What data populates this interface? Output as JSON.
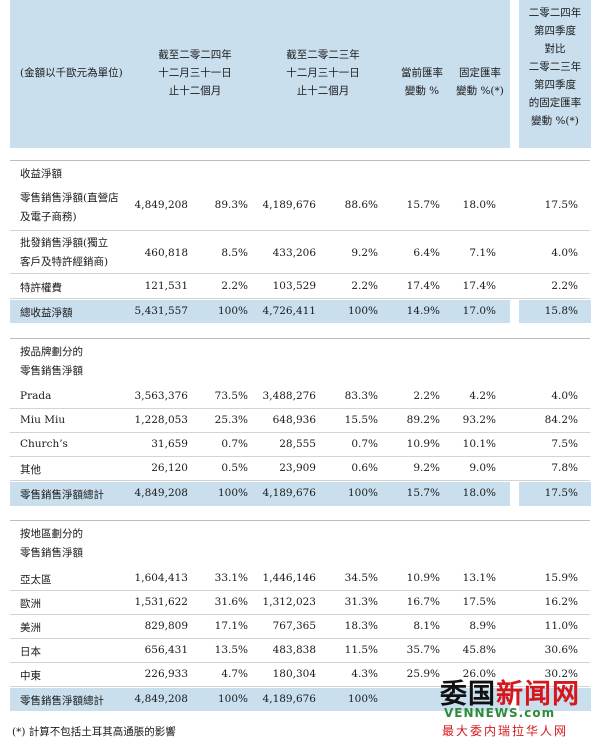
{
  "header": {
    "unit_label": "(金額以千歐元為單位)",
    "col_2024": "截至二零二四年\n十二月三十一日\n止十二個月",
    "col_2023": "截至二零二三年\n十二月三十一日\n止十二個月",
    "col_reported": "當前匯率\n變動 %",
    "col_constant": "固定匯率\n變動 %(*)",
    "col_q4": "二零二四年\n第四季度\n對比\n二零二三年\n第四季度\n的固定匯率\n變動 %(*)"
  },
  "sections": {
    "s1_title": "收益淨額",
    "s2_title": "按品牌劃分的\n零售銷售淨額",
    "s3_title": "按地區劃分的\n零售銷售淨額"
  },
  "rows": {
    "r1": {
      "label": "零售銷售淨額(直營店\n及電子商務)",
      "v1": "4,849,208",
      "p1": "89.3%",
      "v2": "4,189,676",
      "p2": "88.6%",
      "r1": "15.7%",
      "r2": "18.0%",
      "r3": "17.5%"
    },
    "r2": {
      "label": "批發銷售淨額(獨立\n客戶及特許經銷商)",
      "v1": "460,818",
      "p1": "8.5%",
      "v2": "433,206",
      "p2": "9.2%",
      "r1": "6.4%",
      "r2": "7.1%",
      "r3": "4.0%"
    },
    "r3": {
      "label": "特許權費",
      "v1": "121,531",
      "p1": "2.2%",
      "v2": "103,529",
      "p2": "2.2%",
      "r1": "17.4%",
      "r2": "17.4%",
      "r3": "2.2%"
    },
    "r4": {
      "label": "總收益淨額",
      "v1": "5,431,557",
      "p1": "100%",
      "v2": "4,726,411",
      "p2": "100%",
      "r1": "14.9%",
      "r2": "17.0%",
      "r3": "15.8%"
    },
    "b1": {
      "label": "Prada",
      "v1": "3,563,376",
      "p1": "73.5%",
      "v2": "3,488,276",
      "p2": "83.3%",
      "r1": "2.2%",
      "r2": "4.2%",
      "r3": "4.0%"
    },
    "b2": {
      "label": "Miu Miu",
      "v1": "1,228,053",
      "p1": "25.3%",
      "v2": "648,936",
      "p2": "15.5%",
      "r1": "89.2%",
      "r2": "93.2%",
      "r3": "84.2%"
    },
    "b3": {
      "label": "Church’s",
      "v1": "31,659",
      "p1": "0.7%",
      "v2": "28,555",
      "p2": "0.7%",
      "r1": "10.9%",
      "r2": "10.1%",
      "r3": "7.5%"
    },
    "b4": {
      "label": "其他",
      "v1": "26,120",
      "p1": "0.5%",
      "v2": "23,909",
      "p2": "0.6%",
      "r1": "9.2%",
      "r2": "9.0%",
      "r3": "7.8%"
    },
    "b5": {
      "label": "零售銷售淨額總計",
      "v1": "4,849,208",
      "p1": "100%",
      "v2": "4,189,676",
      "p2": "100%",
      "r1": "15.7%",
      "r2": "18.0%",
      "r3": "17.5%"
    },
    "g1": {
      "label": "亞太區",
      "v1": "1,604,413",
      "p1": "33.1%",
      "v2": "1,446,146",
      "p2": "34.5%",
      "r1": "10.9%",
      "r2": "13.1%",
      "r3": "15.9%"
    },
    "g2": {
      "label": "歐洲",
      "v1": "1,531,622",
      "p1": "31.6%",
      "v2": "1,312,023",
      "p2": "31.3%",
      "r1": "16.7%",
      "r2": "17.5%",
      "r3": "16.2%"
    },
    "g3": {
      "label": "美洲",
      "v1": "829,809",
      "p1": "17.1%",
      "v2": "767,365",
      "p2": "18.3%",
      "r1": "8.1%",
      "r2": "8.9%",
      "r3": "11.0%"
    },
    "g4": {
      "label": "日本",
      "v1": "656,431",
      "p1": "13.5%",
      "v2": "483,838",
      "p2": "11.5%",
      "r1": "35.7%",
      "r2": "45.8%",
      "r3": "30.6%"
    },
    "g5": {
      "label": "中東",
      "v1": "226,933",
      "p1": "4.7%",
      "v2": "180,304",
      "p2": "4.3%",
      "r1": "25.9%",
      "r2": "26.0%",
      "r3": "30.2%"
    },
    "g6": {
      "label": "零售銷售淨額總計",
      "v1": "4,849,208",
      "p1": "100%",
      "v2": "4,189,676",
      "p2": "100%",
      "r1": "",
      "r2": "",
      "r3": ""
    }
  },
  "footnote": "(*) 計算不包括土耳其高通脹的影響",
  "watermark": {
    "logo_a": "委国",
    "logo_b": "新闻网",
    "domain": "VENNEWS.com",
    "caption": "最大委内瑞拉华人网"
  },
  "colors": {
    "header_band": "#c9dfee",
    "total_band": "#c9dfee",
    "watermark_red": "#d5171c",
    "watermark_green": "#2e8b3a"
  }
}
